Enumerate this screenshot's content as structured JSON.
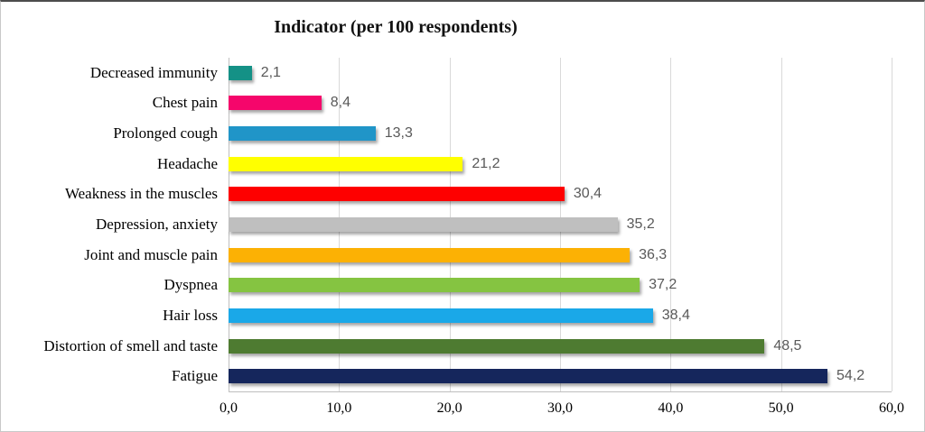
{
  "title": "Indicator (per 100 respondents)",
  "chart_data": {
    "type": "bar",
    "orientation": "horizontal",
    "title": "Indicator (per 100 respondents)",
    "xlabel": "",
    "ylabel": "",
    "xlim": [
      0,
      60
    ],
    "x_ticks": [
      "0,0",
      "10,0",
      "20,0",
      "30,0",
      "40,0",
      "50,0",
      "60,0"
    ],
    "grid": true,
    "gridline_color": "#d9d9d9",
    "value_label_color": "#595959",
    "bars": [
      {
        "category": "Decreased immunity",
        "value": 2.1,
        "value_label": "2,1",
        "color": "#149186"
      },
      {
        "category": "Chest pain",
        "value": 8.4,
        "value_label": "8,4",
        "color": "#f5066b"
      },
      {
        "category": "Prolonged cough",
        "value": 13.3,
        "value_label": "13,3",
        "color": "#2095c8"
      },
      {
        "category": "Headache",
        "value": 21.2,
        "value_label": "21,2",
        "color": "#ffff00"
      },
      {
        "category": "Weakness in the muscles",
        "value": 30.4,
        "value_label": "30,4",
        "color": "#fe0000"
      },
      {
        "category": "Depression, anxiety",
        "value": 35.2,
        "value_label": "35,2",
        "color": "#bfbfbf"
      },
      {
        "category": "Joint and muscle pain",
        "value": 36.3,
        "value_label": "36,3",
        "color": "#fcb104"
      },
      {
        "category": "Dyspnea",
        "value": 37.2,
        "value_label": "37,2",
        "color": "#85c441"
      },
      {
        "category": "Hair loss",
        "value": 38.4,
        "value_label": "38,4",
        "color": "#1aa8e8"
      },
      {
        "category": "Distortion of smell and taste",
        "value": 48.5,
        "value_label": "48,5",
        "color": "#4e7b31"
      },
      {
        "category": "Fatigue",
        "value": 54.2,
        "value_label": "54,2",
        "color": "#15265c"
      }
    ]
  }
}
